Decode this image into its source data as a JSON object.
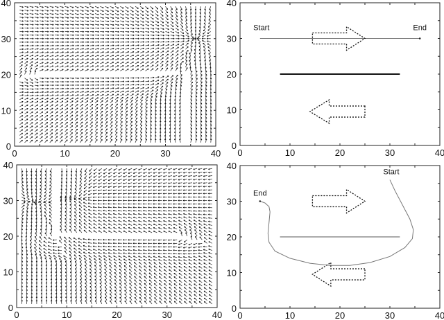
{
  "figure": {
    "panels": [
      {
        "id": "top-left",
        "kind": "vector-field",
        "frame": [
          21,
          4,
          311,
          211
        ]
      },
      {
        "id": "top-right",
        "kind": "path",
        "frame": [
          346,
          4,
          634,
          210
        ]
      },
      {
        "id": "bottom-left",
        "kind": "vector-field",
        "frame": [
          24,
          238,
          313,
          444
        ]
      },
      {
        "id": "bottom-right",
        "kind": "path",
        "frame": [
          346,
          239,
          634,
          445
        ]
      }
    ]
  },
  "chart_data": [
    {
      "type": "quiver",
      "title": "",
      "xlabel": "",
      "ylabel": "",
      "xlim": [
        0,
        40
      ],
      "ylim": [
        0,
        40
      ],
      "xticks": [
        "0",
        "10",
        "20",
        "30",
        "40"
      ],
      "yticks": [
        "0",
        "10",
        "20",
        "30",
        "40"
      ],
      "grid": false,
      "goal": [
        36,
        30
      ],
      "obstacles": [
        {
          "from": [
            5,
            20
          ],
          "to": [
            32,
            20
          ]
        },
        {
          "from": [
            34,
            0
          ],
          "to": [
            34,
            20
          ]
        }
      ],
      "grid_spacing": 1,
      "description": "Vector field converging toward goal at (36,30); flow circulates clockwise around horizontal wall at y=20"
    },
    {
      "type": "line",
      "title": "",
      "xlabel": "",
      "ylabel": "",
      "xlim": [
        0,
        40
      ],
      "ylim": [
        0,
        40
      ],
      "xticks": [
        "0",
        "10",
        "20",
        "30",
        "40"
      ],
      "yticks": [
        "0",
        "10",
        "20",
        "30",
        "40"
      ],
      "grid": false,
      "annotations": [
        {
          "text": "Start",
          "x": 4,
          "y": 30
        },
        {
          "text": "End",
          "x": 36,
          "y": 30
        }
      ],
      "obstacle": {
        "from": [
          8,
          20
        ],
        "to": [
          32,
          20
        ]
      },
      "path": {
        "x": [
          4,
          10,
          20,
          30,
          36
        ],
        "y": [
          30,
          30,
          30,
          30,
          30
        ]
      },
      "flow_arrows": [
        {
          "direction": "right",
          "tail_x": 14.5,
          "head_x": 25,
          "y": 30
        },
        {
          "direction": "left",
          "tail_x": 25,
          "head_x": 14,
          "y": 9.5
        }
      ]
    },
    {
      "type": "quiver",
      "title": "",
      "xlabel": "",
      "ylabel": "",
      "xlim": [
        0,
        40
      ],
      "ylim": [
        0,
        40
      ],
      "xticks": [
        "0",
        "10",
        "20",
        "30",
        "40"
      ],
      "yticks": [
        "0",
        "10",
        "20",
        "30",
        "40"
      ],
      "grid": false,
      "goal": [
        4,
        30
      ],
      "obstacles": [
        {
          "from": [
            8,
            20
          ],
          "to": [
            32,
            20
          ]
        },
        {
          "from": [
            8,
            20
          ],
          "to": [
            8,
            40
          ]
        }
      ],
      "grid_spacing": 1,
      "description": "Vector field converging toward goal at (4,30); flow circulates around wall at y=20 via the bottom"
    },
    {
      "type": "line",
      "title": "",
      "xlabel": "",
      "ylabel": "",
      "xlim": [
        0,
        40
      ],
      "ylim": [
        0,
        40
      ],
      "xticks": [
        "0",
        "10",
        "20",
        "30",
        "40"
      ],
      "yticks": [
        "0",
        "10",
        "20",
        "30",
        "40"
      ],
      "grid": false,
      "annotations": [
        {
          "text": "End",
          "x": 4,
          "y": 30
        },
        {
          "text": "Start",
          "x": 30,
          "y": 36
        }
      ],
      "obstacle": {
        "from": [
          8,
          20
        ],
        "to": [
          32,
          20
        ]
      },
      "path": {
        "x": [
          30,
          31,
          32.5,
          34,
          34.7,
          34.5,
          33,
          30,
          26,
          22,
          18,
          14,
          10,
          7,
          5.8,
          5.6,
          5.8,
          6,
          5.8,
          5,
          4
        ],
        "y": [
          36,
          33,
          29,
          25,
          22,
          19.5,
          17,
          14.5,
          12.8,
          12,
          12,
          12.6,
          14,
          16,
          18.5,
          21,
          24,
          27,
          28.5,
          29.5,
          30
        ]
      },
      "flow_arrows": [
        {
          "direction": "right",
          "tail_x": 14.5,
          "head_x": 25,
          "y": 30
        },
        {
          "direction": "left",
          "tail_x": 25,
          "head_x": 14.5,
          "y": 9.5
        }
      ]
    }
  ]
}
